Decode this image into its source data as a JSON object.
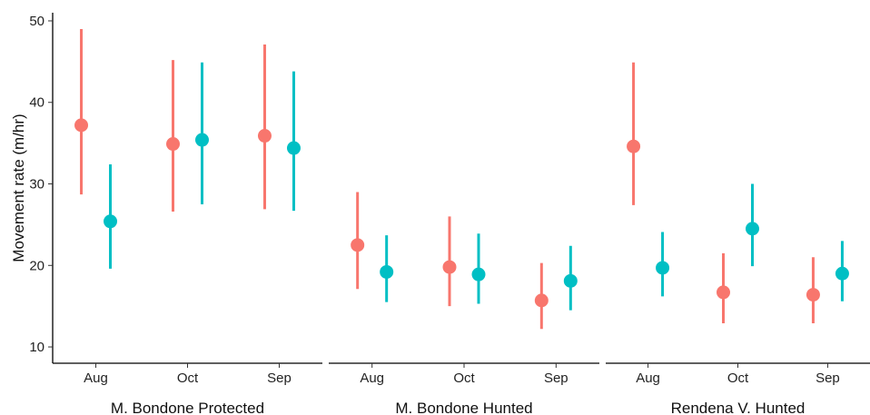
{
  "chart_data": {
    "type": "scatter",
    "ylabel": "Movement rate (m/hr)",
    "ylim": [
      8,
      51
    ],
    "y_ticks": [
      10,
      20,
      30,
      40,
      50
    ],
    "categories": [
      "Aug",
      "Oct",
      "Sep"
    ],
    "grid": false,
    "series_colors": [
      "#F8766D",
      "#00BFC4"
    ],
    "panels": [
      {
        "label": "M. Bondone Protected",
        "points": [
          {
            "category": "Aug",
            "series": 0,
            "y": 37.2,
            "low": 28.7,
            "high": 49.0
          },
          {
            "category": "Aug",
            "series": 1,
            "y": 25.4,
            "low": 19.6,
            "high": 32.4
          },
          {
            "category": "Oct",
            "series": 0,
            "y": 34.9,
            "low": 26.6,
            "high": 45.2
          },
          {
            "category": "Oct",
            "series": 1,
            "y": 35.4,
            "low": 27.5,
            "high": 44.9
          },
          {
            "category": "Sep",
            "series": 0,
            "y": 35.9,
            "low": 26.9,
            "high": 47.1
          },
          {
            "category": "Sep",
            "series": 1,
            "y": 34.4,
            "low": 26.7,
            "high": 43.8
          }
        ]
      },
      {
        "label": "M. Bondone Hunted",
        "points": [
          {
            "category": "Aug",
            "series": 0,
            "y": 22.5,
            "low": 17.1,
            "high": 29.0
          },
          {
            "category": "Aug",
            "series": 1,
            "y": 19.2,
            "low": 15.5,
            "high": 23.7
          },
          {
            "category": "Oct",
            "series": 0,
            "y": 19.8,
            "low": 15.0,
            "high": 26.0
          },
          {
            "category": "Oct",
            "series": 1,
            "y": 18.9,
            "low": 15.3,
            "high": 23.9
          },
          {
            "category": "Sep",
            "series": 0,
            "y": 15.7,
            "low": 12.2,
            "high": 20.3
          },
          {
            "category": "Sep",
            "series": 1,
            "y": 18.1,
            "low": 14.5,
            "high": 22.4
          }
        ]
      },
      {
        "label": "Rendena V. Hunted",
        "points": [
          {
            "category": "Aug",
            "series": 0,
            "y": 34.6,
            "low": 27.4,
            "high": 44.9
          },
          {
            "category": "Aug",
            "series": 1,
            "y": 19.7,
            "low": 16.2,
            "high": 24.1
          },
          {
            "category": "Oct",
            "series": 0,
            "y": 16.7,
            "low": 12.9,
            "high": 21.5
          },
          {
            "category": "Oct",
            "series": 1,
            "y": 24.5,
            "low": 19.9,
            "high": 30.0
          },
          {
            "category": "Sep",
            "series": 0,
            "y": 16.4,
            "low": 12.9,
            "high": 21.0
          },
          {
            "category": "Sep",
            "series": 1,
            "y": 19.0,
            "low": 15.6,
            "high": 23.0
          }
        ]
      }
    ]
  }
}
